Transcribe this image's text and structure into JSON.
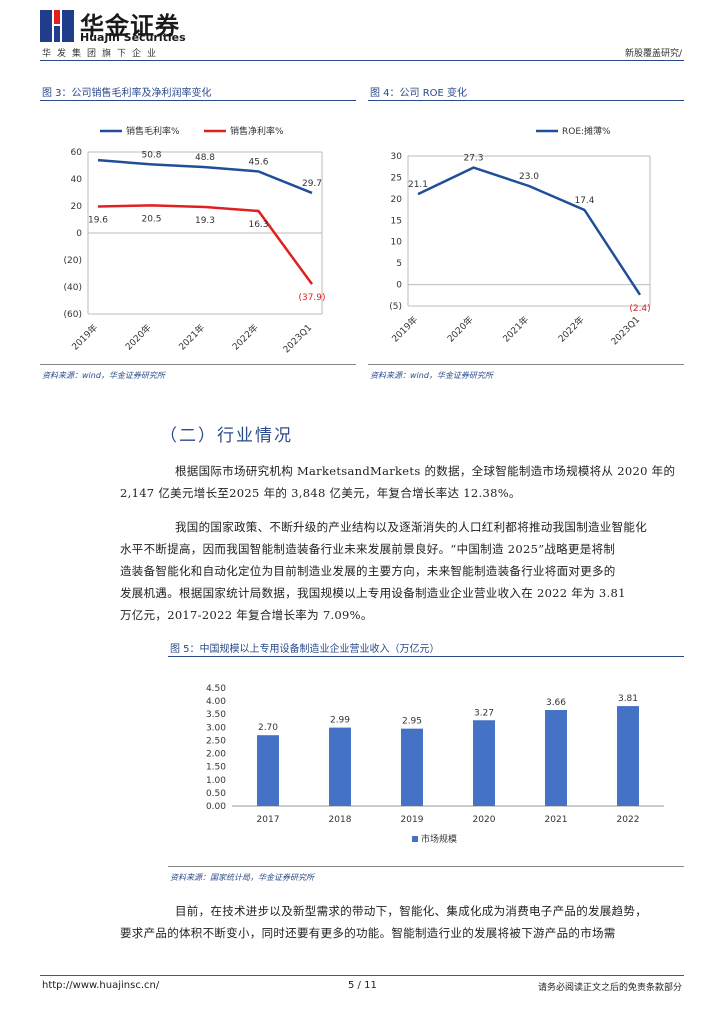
{
  "header": {
    "company_cn": "华金证券",
    "company_en": "Huajin Securities",
    "slogan": "华发集团旗下企业",
    "report_type": "新股覆盖研究/"
  },
  "figures": [
    {
      "title": "图 3：公司销售毛利率及净利润率变化",
      "source": "资料来源：wind，华金证券研究所"
    },
    {
      "title": "图 4：公司 ROE 变化",
      "source": "资料来源：wind，华金证券研究所"
    },
    {
      "title": "图 5：中国规模以上专用设备制造业企业营业收入（万亿元）",
      "source": "资料来源：国家统计局，华金证券研究所"
    }
  ],
  "chart_data": [
    {
      "type": "line",
      "categories": [
        "2019年",
        "2020年",
        "2021年",
        "2022年",
        "2023Q1"
      ],
      "series": [
        {
          "name": "销售毛利率%",
          "values": [
            54.0,
            50.8,
            48.8,
            45.6,
            29.7
          ],
          "labels": [
            "",
            "50.8",
            "48.8",
            "45.6",
            "29.7"
          ],
          "color": "#1f4e9a"
        },
        {
          "name": "销售净利率%",
          "values": [
            19.6,
            20.5,
            19.3,
            16.3,
            -37.9
          ],
          "labels": [
            "19.6",
            "20.5",
            "19.3",
            "16.3",
            "(37.9)"
          ],
          "color": "#e02020"
        }
      ],
      "yticks": [
        "60",
        "40",
        "20",
        "0",
        "(20)",
        "(40)",
        "(60)"
      ],
      "ylim": [
        -60,
        60
      ],
      "legend": "top"
    },
    {
      "type": "line",
      "categories": [
        "2019年",
        "2020年",
        "2021年",
        "2022年",
        "2023Q1"
      ],
      "series": [
        {
          "name": "ROE:摊薄%",
          "values": [
            21.1,
            27.3,
            23.0,
            17.4,
            -2.4
          ],
          "labels": [
            "21.1",
            "27.3",
            "23.0",
            "17.4",
            "(2.4)"
          ],
          "color": "#1f4e9a"
        }
      ],
      "yticks": [
        "30",
        "25",
        "20",
        "15",
        "10",
        "5",
        "0",
        "(5)"
      ],
      "ylim": [
        -5,
        30
      ],
      "legend": "top"
    },
    {
      "type": "bar",
      "categories": [
        "2017",
        "2018",
        "2019",
        "2020",
        "2021",
        "2022"
      ],
      "series": [
        {
          "name": "市场规模",
          "values": [
            2.7,
            2.99,
            2.95,
            3.27,
            3.66,
            3.81
          ],
          "labels": [
            "2.70",
            "2.99",
            "2.95",
            "3.27",
            "3.66",
            "3.81"
          ],
          "color": "#4472c4"
        }
      ],
      "yticks": [
        "4.50",
        "4.00",
        "3.50",
        "3.00",
        "2.50",
        "2.00",
        "1.50",
        "1.00",
        "0.50",
        "0.00"
      ],
      "ylim": [
        0,
        4.5
      ],
      "legend": "bottom"
    }
  ],
  "section_title": "（二）行业情况",
  "paragraphs": [
    {
      "lines": [
        "根据国际市场研究机构 MarketsandMarkets 的数据，全球智能制造市场规模将从 2020 年的",
        "2,147 亿美元增长至2025 年的 3,848 亿美元，年复合增长率达 12.38%。"
      ]
    },
    {
      "lines": [
        "我国的国家政策、不断升级的产业结构以及逐渐消失的人口红利都将推动我国制造业智能化",
        "水平不断提高，因而我国智能制造装备行业未来发展前景良好。“中国制造 2025”战略更是将制",
        "造装备智能化和自动化定位为目前制造业发展的主要方向，未来智能制造装备行业将面对更多的",
        "发展机遇。根据国家统计局数据，我国规模以上专用设备制造业企业营业收入在 2022 年为 3.81",
        "万亿元，2017-2022 年复合增长率为 7.09%。"
      ]
    },
    {
      "lines": [
        "目前，在技术进步以及新型需求的带动下，智能化、集成化成为消费电子产品的发展趋势，",
        "要求产品的体积不断变小，同时还要有更多的功能。智能制造行业的发展将被下游产品的市场需"
      ]
    }
  ],
  "footer": {
    "url": "http://www.huajinsc.cn/",
    "page": "5 / 11",
    "disclaimer": "请务必阅读正文之后的免责条款部分"
  }
}
